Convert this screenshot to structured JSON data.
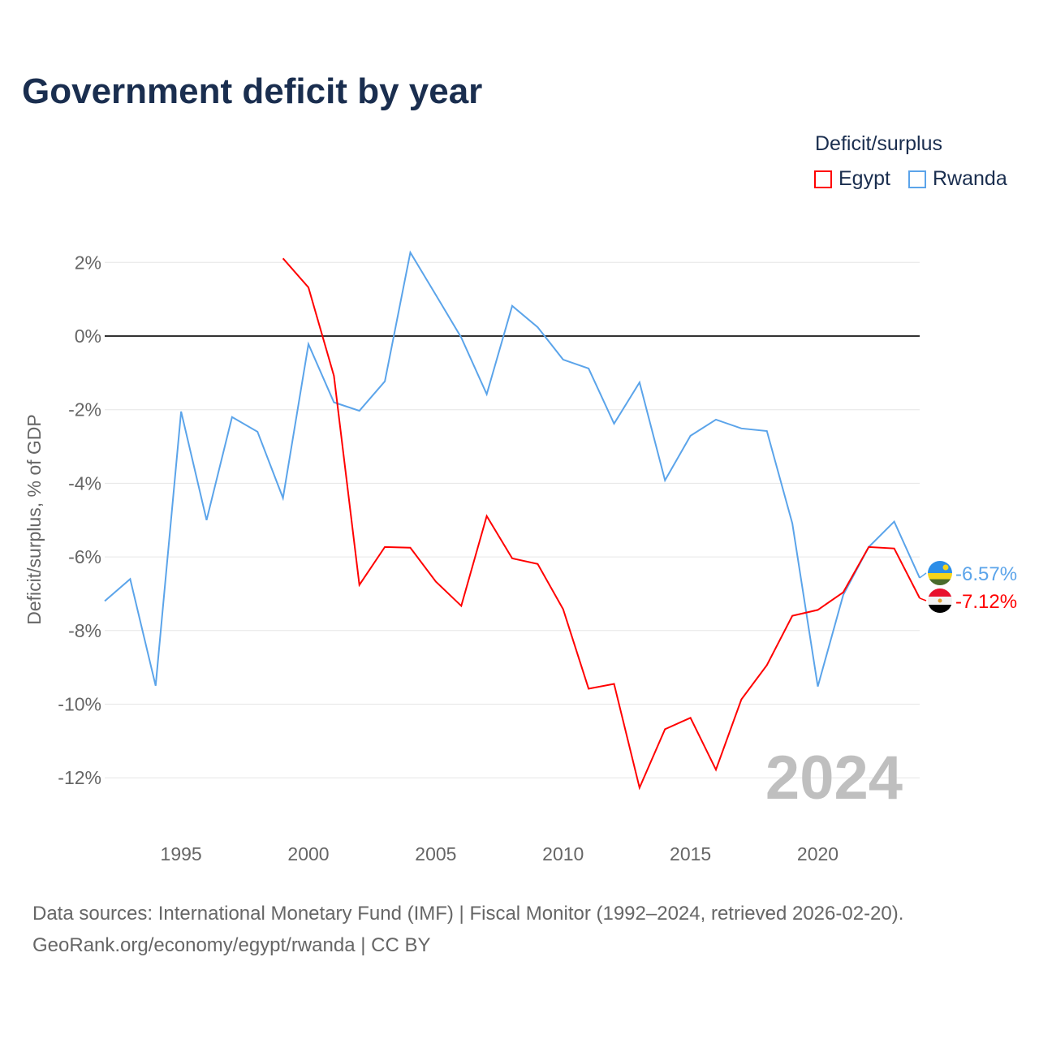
{
  "title": "Government deficit by year",
  "legend": {
    "title": "Deficit/surplus"
  },
  "watermark_year": "2024",
  "source_line1": "Data sources: International Monetary Fund (IMF) | Fiscal Monitor (1992–2024, retrieved 2026-02-20).",
  "source_line2": "GeoRank.org/economy/egypt/rwanda | CC BY",
  "chart_data": {
    "type": "line",
    "title": "Government deficit by year",
    "xlabel": "",
    "ylabel": "Deficit/surplus, % of GDP",
    "xlim": [
      1992,
      2024
    ],
    "ylim": [
      -13.5,
      3
    ],
    "x_ticks": [
      1995,
      2000,
      2005,
      2010,
      2015,
      2020
    ],
    "y_ticks": [
      2,
      0,
      -2,
      -4,
      -6,
      -8,
      -10,
      -12
    ],
    "y_tick_labels": [
      "2%",
      "0%",
      "-2%",
      "-4%",
      "-6%",
      "-8%",
      "-10%",
      "-12%"
    ],
    "grid": true,
    "legend_position": "top-right",
    "series": [
      {
        "name": "Egypt",
        "color": "#ff0000",
        "end_label": "-7.12%",
        "x": [
          1999,
          2000,
          2001,
          2002,
          2003,
          2004,
          2005,
          2006,
          2007,
          2008,
          2009,
          2010,
          2011,
          2012,
          2013,
          2014,
          2015,
          2016,
          2017,
          2018,
          2019,
          2020,
          2021,
          2022,
          2023,
          2024
        ],
        "values": [
          2.11,
          1.32,
          -1.08,
          -6.76,
          -5.73,
          -5.75,
          -6.67,
          -7.33,
          -4.89,
          -6.04,
          -6.19,
          -7.42,
          -9.58,
          -9.45,
          -12.27,
          -10.68,
          -10.37,
          -11.78,
          -9.87,
          -8.94,
          -7.6,
          -7.44,
          -6.96,
          -5.73,
          -5.77,
          -7.12
        ]
      },
      {
        "name": "Rwanda",
        "color": "#5ba4ea",
        "end_label": "-6.57%",
        "x": [
          1992,
          1993,
          1994,
          1995,
          1996,
          1997,
          1998,
          1999,
          2000,
          2001,
          2002,
          2003,
          2004,
          2005,
          2006,
          2007,
          2008,
          2009,
          2010,
          2011,
          2012,
          2013,
          2014,
          2015,
          2016,
          2017,
          2018,
          2019,
          2020,
          2021,
          2022,
          2023,
          2024
        ],
        "values": [
          -7.2,
          -6.6,
          -9.5,
          -2.05,
          -5.0,
          -2.2,
          -2.6,
          -4.4,
          -0.22,
          -1.8,
          -2.03,
          -1.23,
          2.27,
          1.12,
          -0.04,
          -1.58,
          0.82,
          0.24,
          -0.64,
          -0.88,
          -2.38,
          -1.26,
          -3.92,
          -2.71,
          -2.27,
          -2.51,
          -2.58,
          -5.09,
          -9.52,
          -7.03,
          -5.73,
          -5.04,
          -6.57
        ]
      }
    ]
  }
}
